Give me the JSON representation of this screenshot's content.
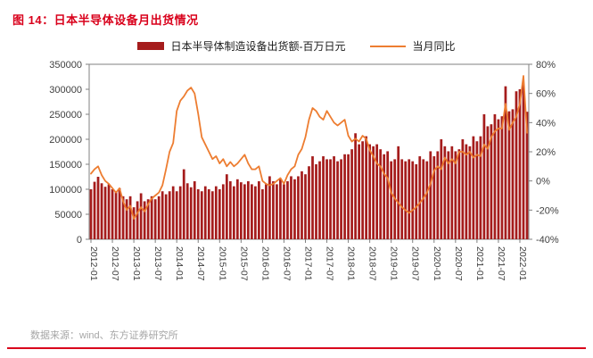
{
  "figure": {
    "title": "图 14：日本半导体设备月出货情况",
    "source": "数据来源：wind、东方证券研究所"
  },
  "legend": {
    "bar_label": "日本半导体制造设备出货额-百万日元",
    "line_label": "当月同比"
  },
  "colors": {
    "title": "#D9001B",
    "bar": "#A51C1C",
    "line": "#ED7D31",
    "axis": "#808080",
    "tick_text": "#404040",
    "rule": "#D9001B"
  },
  "chart_data": {
    "type": "bar",
    "title": "日本半导体设备月出货情况",
    "xlabel": "",
    "ylabel_left": "出货额-百万日元",
    "ylabel_right": "当月同比",
    "x_tick_labels": [
      "2012-01",
      "2012-07",
      "2013-01",
      "2013-07",
      "2014-01",
      "2014-07",
      "2015-01",
      "2015-07",
      "2016-01",
      "2016-07",
      "2017-01",
      "2017-07",
      "2018-01",
      "2018-07",
      "2019-01",
      "2019-07",
      "2020-01",
      "2020-07",
      "2021-01",
      "2021-07",
      "2022-01"
    ],
    "x_tick_step": 6,
    "left_axis": {
      "min": 0,
      "max": 350000,
      "step": 50000
    },
    "right_axis": {
      "min": -40,
      "max": 80,
      "step": 20,
      "suffix": "%"
    },
    "series": [
      {
        "name": "日本半导体制造设备出货额-百万日元",
        "type": "bar",
        "axis": "left",
        "values": [
          100000,
          115000,
          125000,
          112000,
          105000,
          110000,
          100000,
          96000,
          102000,
          86000,
          80000,
          86000,
          64000,
          76000,
          92000,
          76000,
          80000,
          86000,
          80000,
          86000,
          96000,
          90000,
          96000,
          106000,
          96000,
          106000,
          140000,
          112000,
          104000,
          116000,
          100000,
          96000,
          106000,
          100000,
          96000,
          106000,
          100000,
          110000,
          130000,
          116000,
          106000,
          120000,
          114000,
          110000,
          116000,
          110000,
          106000,
          116000,
          100000,
          110000,
          126000,
          116000,
          110000,
          120000,
          110000,
          116000,
          126000,
          120000,
          126000,
          136000,
          130000,
          146000,
          166000,
          150000,
          156000,
          166000,
          160000,
          160000,
          166000,
          156000,
          160000,
          170000,
          170000,
          180000,
          212000,
          190000,
          196000,
          206000,
          190000,
          186000,
          190000,
          180000,
          170000,
          176000,
          156000,
          160000,
          186000,
          160000,
          156000,
          160000,
          156000,
          150000,
          166000,
          160000,
          156000,
          176000,
          166000,
          176000,
          200000,
          186000,
          176000,
          186000,
          176000,
          180000,
          200000,
          190000,
          186000,
          206000,
          196000,
          206000,
          250000,
          226000,
          230000,
          250000,
          240000,
          246000,
          306000,
          256000,
          260000,
          296000,
          300000,
          310000,
          255000
        ]
      },
      {
        "name": "当月同比",
        "type": "line",
        "axis": "right",
        "values": [
          5,
          8,
          10,
          4,
          0,
          -2,
          -5,
          -8,
          -5,
          -14,
          -20,
          -17,
          -26,
          -22,
          -18,
          -21,
          -16,
          -12,
          -10,
          -8,
          -3,
          8,
          20,
          26,
          48,
          55,
          58,
          62,
          64,
          60,
          46,
          30,
          25,
          20,
          15,
          17,
          12,
          15,
          10,
          13,
          10,
          12,
          15,
          18,
          12,
          8,
          8,
          10,
          0,
          -2,
          -3,
          -2,
          0,
          2,
          -2,
          4,
          8,
          10,
          18,
          22,
          30,
          42,
          50,
          48,
          44,
          42,
          48,
          44,
          40,
          38,
          40,
          42,
          31,
          27,
          29,
          27,
          31,
          29,
          21,
          17,
          12,
          10,
          5,
          2,
          -8,
          -12,
          -15,
          -18,
          -20,
          -22,
          -20,
          -18,
          -15,
          -12,
          -8,
          -2,
          7,
          10,
          8,
          16,
          12,
          15,
          12,
          20,
          20,
          18,
          20,
          16,
          18,
          17,
          25,
          22,
          30,
          34,
          36,
          36,
          53,
          35,
          40,
          44,
          53,
          72,
          33
        ]
      }
    ]
  }
}
